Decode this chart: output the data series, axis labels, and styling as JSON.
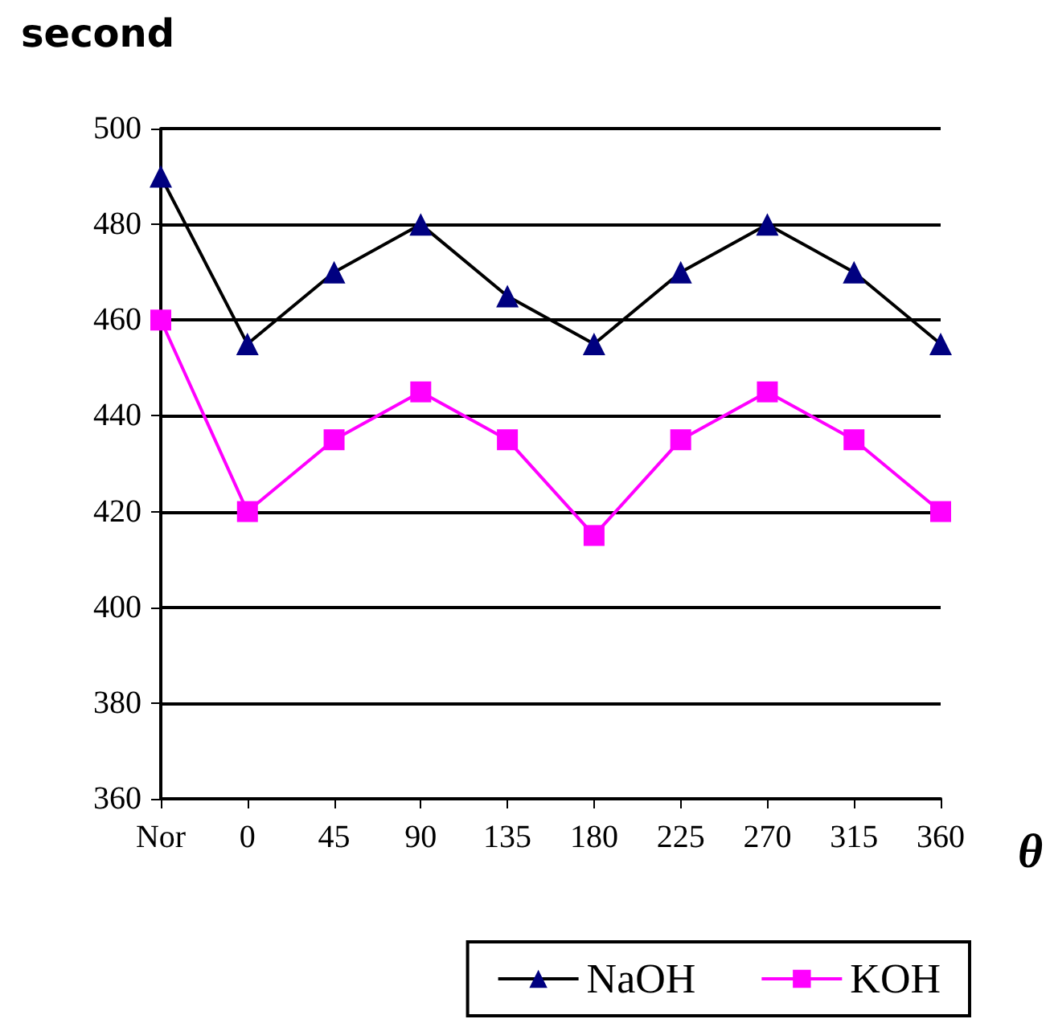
{
  "chart_data": {
    "type": "line",
    "ylabel": "second",
    "xlabel": "θ",
    "categories": [
      "Nor",
      "0",
      "45",
      "90",
      "135",
      "180",
      "225",
      "270",
      "315",
      "360"
    ],
    "series": [
      {
        "name": "NaOH",
        "color": "#000080",
        "marker": "triangle",
        "values": [
          490,
          455,
          470,
          480,
          465,
          455,
          470,
          480,
          470,
          455
        ]
      },
      {
        "name": "KOH",
        "color": "#ff00ff",
        "marker": "square",
        "values": [
          460,
          420,
          435,
          445,
          435,
          415,
          435,
          445,
          435,
          420
        ]
      }
    ],
    "ylim": [
      360,
      500
    ],
    "yticks": [
      360,
      380,
      400,
      420,
      440,
      460,
      480,
      500
    ],
    "grid": "y",
    "legend": "bottom right",
    "line_style": "solid"
  }
}
